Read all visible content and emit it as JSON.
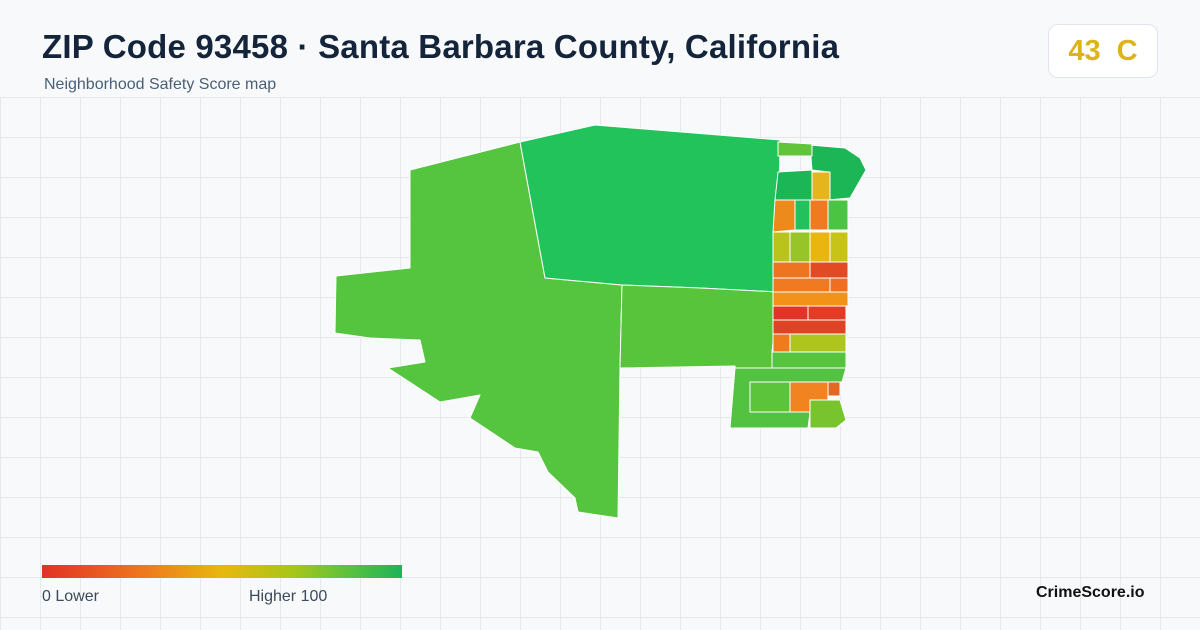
{
  "header": {
    "title": "ZIP Code 93458 · Santa Barbara County, California",
    "subtitle": "Neighborhood Safety Score map"
  },
  "score": {
    "value": "43",
    "grade": "C",
    "color": "#dcb418"
  },
  "legend": {
    "min_label": "0  Lower",
    "max_label": "Higher  100",
    "scale_min": 0,
    "scale_max": 100,
    "colors": [
      "#e03224",
      "#ef7d1c",
      "#e7b80e",
      "#a6c61a",
      "#5cc23e",
      "#1bb35a"
    ]
  },
  "brand": "CrimeScore.io"
}
